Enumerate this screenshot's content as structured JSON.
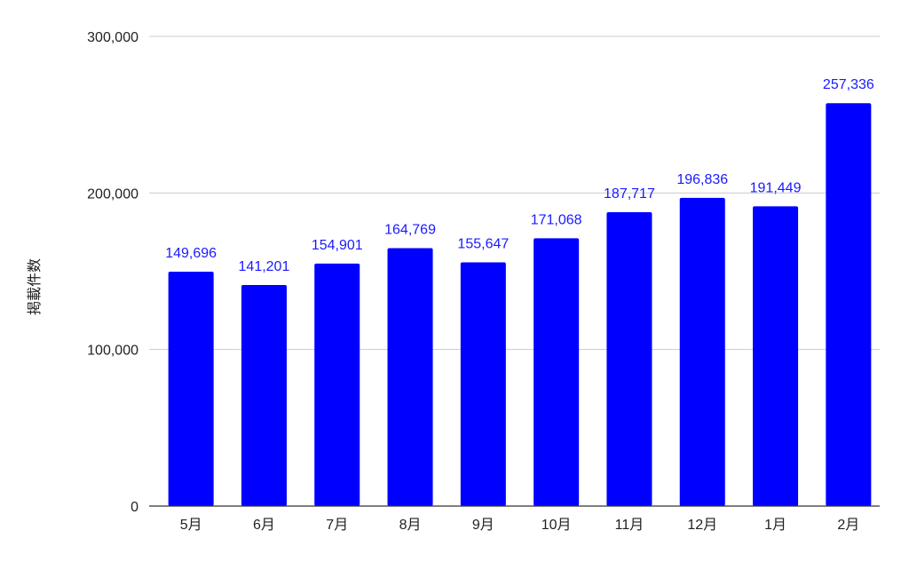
{
  "chart_data": {
    "type": "bar",
    "categories": [
      "5月",
      "6月",
      "7月",
      "8月",
      "9月",
      "10月",
      "11月",
      "12月",
      "1月",
      "2月"
    ],
    "values": [
      149696,
      141201,
      154901,
      164769,
      155647,
      171068,
      187717,
      196836,
      191449,
      257336
    ],
    "value_labels": [
      "149,696",
      "141,201",
      "154,901",
      "164,769",
      "155,647",
      "171,068",
      "187,717",
      "196,836",
      "191,449",
      "257,336"
    ],
    "title": "",
    "xlabel": "",
    "ylabel": "掲載件数",
    "ylim": [
      0,
      300000
    ],
    "yticks": [
      0,
      100000,
      200000,
      300000
    ],
    "ytick_labels": [
      "0",
      "100,000",
      "200,000",
      "300,000"
    ],
    "grid": true,
    "colors": {
      "bar": "#0000ff",
      "value_label": "#1a1aff",
      "grid": "#cccccc"
    }
  }
}
